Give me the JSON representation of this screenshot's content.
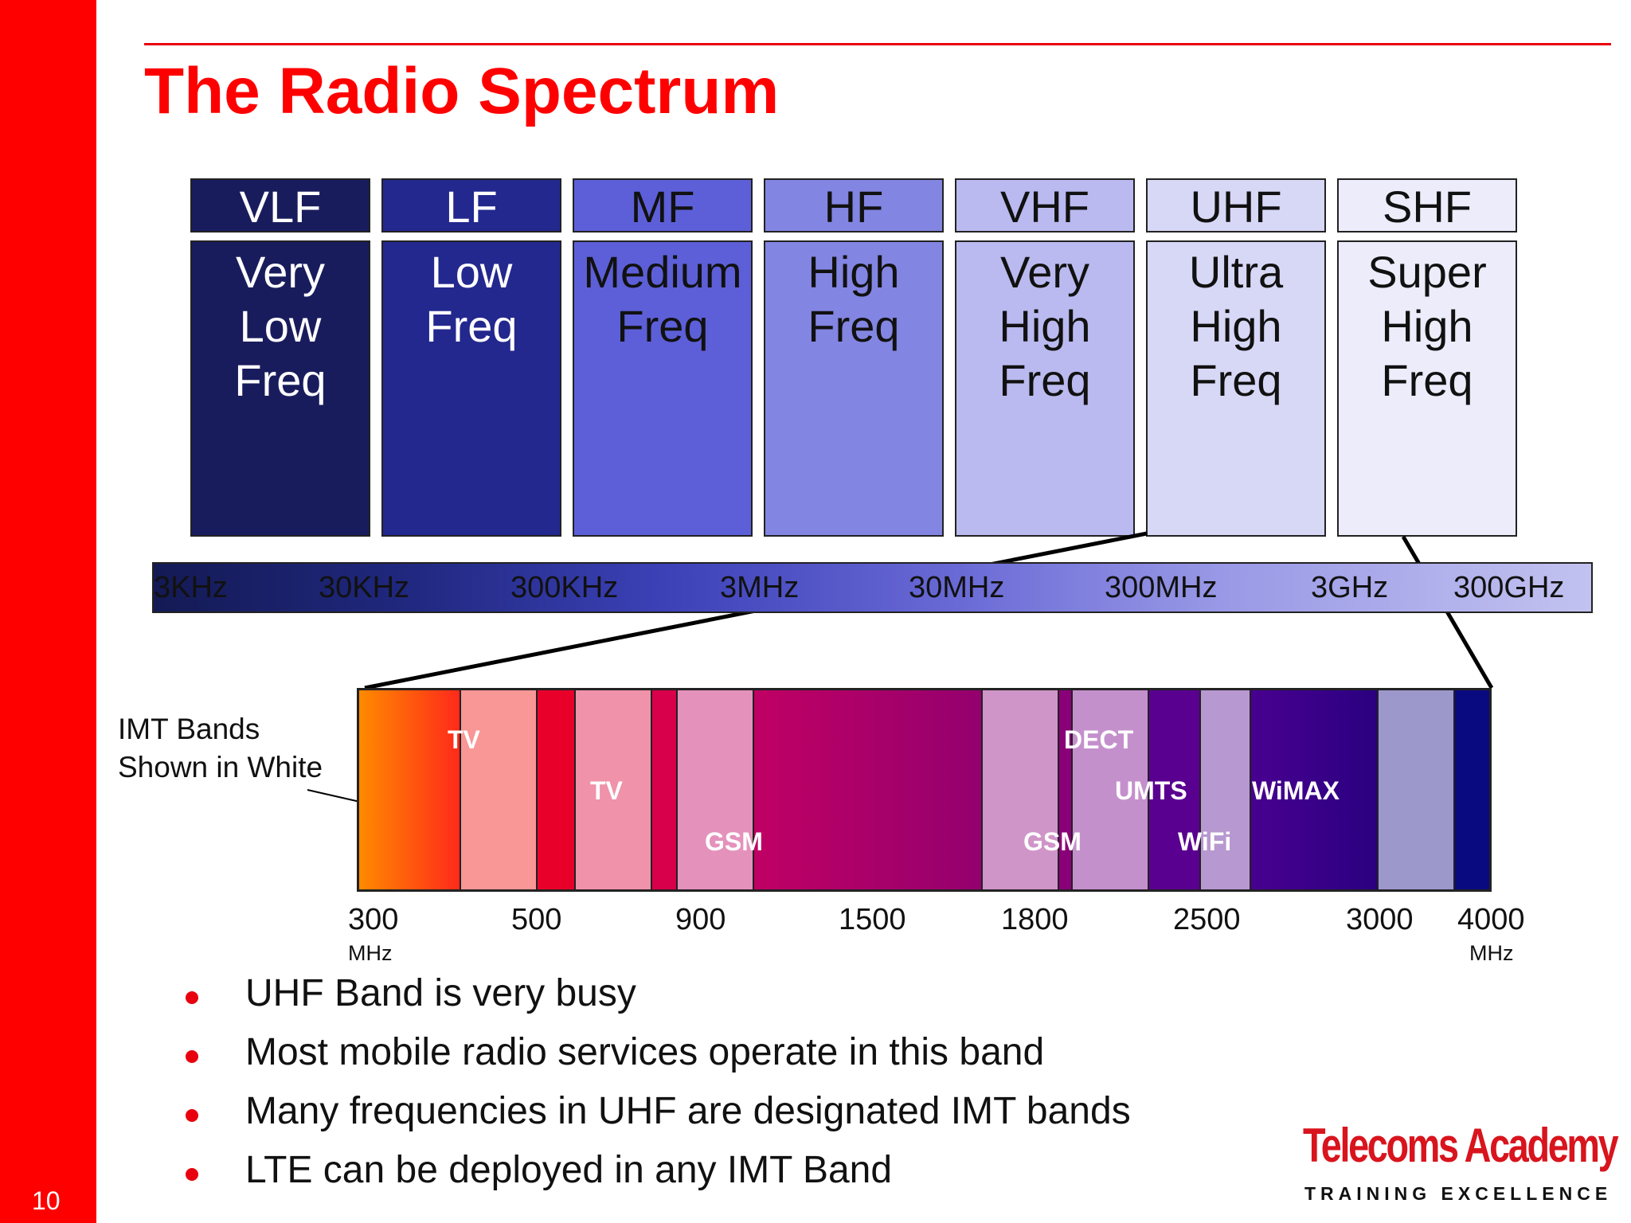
{
  "slide": {
    "number": "10",
    "title": "The Radio Spectrum"
  },
  "bands": [
    {
      "abbr": "VLF",
      "full": "Very\nLow\nFreq",
      "color": "#191c5c",
      "text_color": "#ffffff"
    },
    {
      "abbr": "LF",
      "full": "Low\nFreq",
      "color": "#23288e",
      "text_color": "#ffffff"
    },
    {
      "abbr": "MF",
      "full": "Medium\nFreq",
      "color": "#5d5fd8",
      "text_color": "#111111"
    },
    {
      "abbr": "HF",
      "full": "High\nFreq",
      "color": "#8385e2",
      "text_color": "#111111"
    },
    {
      "abbr": "VHF",
      "full": "Very\nHigh\nFreq",
      "color": "#babaf0",
      "text_color": "#111111"
    },
    {
      "abbr": "UHF",
      "full": "Ultra\nHigh\nFreq",
      "color": "#d7d7f6",
      "text_color": "#111111"
    },
    {
      "abbr": "SHF",
      "full": "Super\nHigh\nFreq",
      "color": "#ececfb",
      "text_color": "#111111"
    }
  ],
  "scale_labels": [
    "3KHz",
    "30KHz",
    "300KHz",
    "3MHz",
    "30MHz",
    "300MHz",
    "3GHz",
    "300GHz"
  ],
  "imt_note": "IMT Bands\nShown in White",
  "imt_segments": [
    {
      "color": "#ff6a10",
      "imt": false
    },
    {
      "color": "#f99696",
      "imt": true
    },
    {
      "color": "#e8002a",
      "imt": false
    },
    {
      "color": "#ef92aa",
      "imt": true
    },
    {
      "color": "#d8004a",
      "imt": false
    },
    {
      "color": "#e492bc",
      "imt": true
    },
    {
      "color": "#b0006a",
      "imt": false
    },
    {
      "color": "#cf95c8",
      "imt": true
    },
    {
      "color": "#8a0078",
      "imt": false
    },
    {
      "color": "#c490cc",
      "imt": true
    },
    {
      "color": "#5a0090",
      "imt": false
    },
    {
      "color": "#b898d0",
      "imt": true
    },
    {
      "color": "#380088",
      "imt": false
    },
    {
      "color": "#9c98cc",
      "imt": true
    },
    {
      "color": "#0a0a80",
      "imt": false
    }
  ],
  "services": [
    "TV",
    "TV",
    "GSM",
    "DECT",
    "UMTS",
    "WiMAX",
    "GSM",
    "WiFi"
  ],
  "freq_labels": [
    "300",
    "500",
    "900",
    "1500",
    "1800",
    "2500",
    "3000",
    "4000"
  ],
  "freq_unit": "MHz",
  "bullets": [
    "UHF Band is very busy",
    "Most mobile radio services operate in this band",
    "Many frequencies in UHF are designated IMT bands",
    "LTE can be deployed in any IMT Band"
  ],
  "logo": {
    "name": "Telecoms Academy",
    "tagline": "TRAINING EXCELLENCE"
  },
  "colors": {
    "accent": "#ff0000",
    "dark_text": "#111111"
  }
}
